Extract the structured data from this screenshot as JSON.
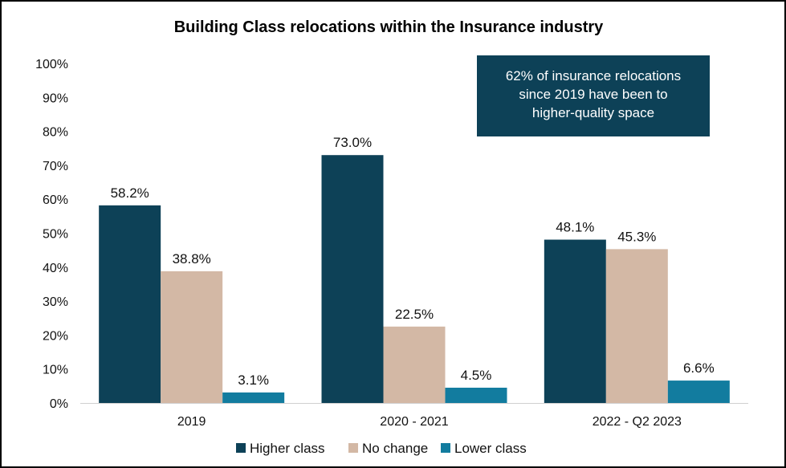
{
  "chart_data": {
    "type": "bar",
    "title": "Building Class relocations within the Insurance industry",
    "categories": [
      "2019",
      "2020 - 2021",
      "2022 - Q2 2023"
    ],
    "series": [
      {
        "name": "Higher class",
        "color": "#0d4157",
        "values": [
          58.2,
          73.0,
          48.1
        ],
        "labels": [
          "58.2%",
          "73.0%",
          "48.1%"
        ]
      },
      {
        "name": "No change",
        "color": "#d3b8a5",
        "values": [
          38.8,
          22.5,
          45.3
        ],
        "labels": [
          "38.8%",
          "22.5%",
          "45.3%"
        ]
      },
      {
        "name": "Lower class",
        "color": "#127c9f",
        "values": [
          3.1,
          4.5,
          6.6
        ],
        "labels": [
          "3.1%",
          "4.5%",
          "6.6%"
        ]
      }
    ],
    "ylim": [
      0,
      100
    ],
    "yticks": [
      "0%",
      "10%",
      "20%",
      "30%",
      "40%",
      "50%",
      "60%",
      "70%",
      "80%",
      "90%",
      "100%"
    ],
    "grid": false,
    "legend_position": "bottom",
    "annotation": {
      "lines": [
        "62% of insurance relocations",
        "since 2019 have been to",
        "higher-quality space"
      ],
      "background": "#0d4157"
    }
  }
}
